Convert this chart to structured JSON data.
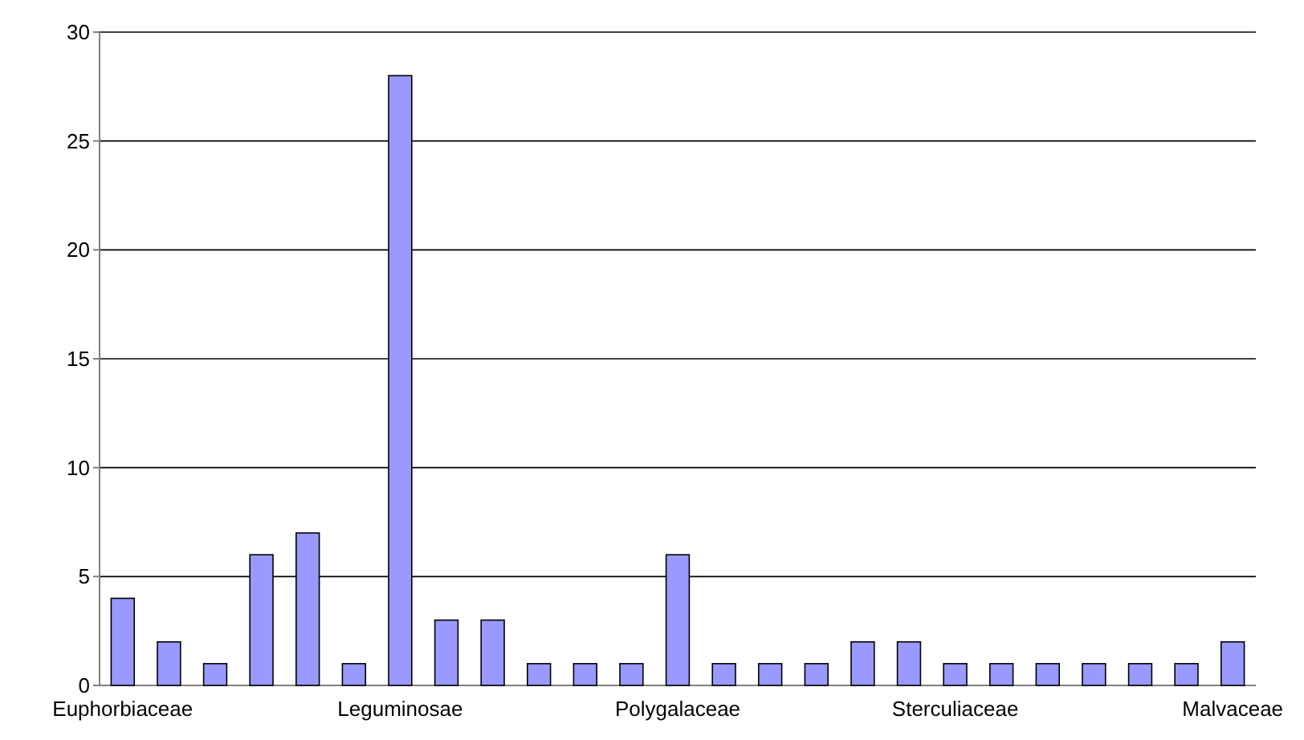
{
  "chart_data": {
    "type": "bar",
    "categories": [
      "Euphorbiaceae",
      null,
      null,
      null,
      null,
      null,
      "Leguminosae",
      null,
      null,
      null,
      null,
      null,
      "Polygalaceae",
      null,
      null,
      null,
      null,
      null,
      "Sterculiaceae",
      null,
      null,
      null,
      null,
      null,
      "Malvaceae"
    ],
    "values": [
      4,
      2,
      1,
      6,
      7,
      1,
      28,
      3,
      3,
      1,
      1,
      1,
      6,
      1,
      1,
      1,
      2,
      2,
      1,
      1,
      1,
      1,
      1,
      1,
      2
    ],
    "color": "#9999ff",
    "ylim": [
      0,
      30
    ],
    "yticks": [
      0,
      5,
      10,
      15,
      20,
      25,
      30
    ],
    "grid": "y"
  }
}
